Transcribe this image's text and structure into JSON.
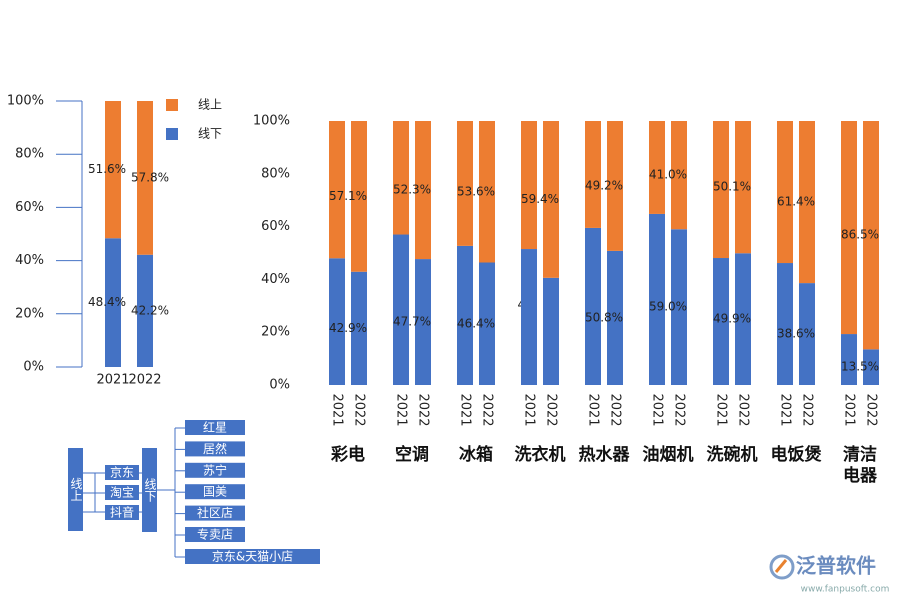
{
  "chart_data": [
    {
      "type": "bar",
      "stacked": true,
      "categories": [
        "2021",
        "2022"
      ],
      "series": [
        {
          "name": "线下",
          "color": "#4472c4",
          "values": [
            48.4,
            42.2
          ],
          "value_labels": [
            "48.4%",
            "42.2%"
          ]
        },
        {
          "name": "线上",
          "color": "#ed7d31",
          "values": [
            51.6,
            57.8
          ],
          "value_labels": [
            "51.6%",
            "57.8%"
          ]
        }
      ],
      "ylim": [
        0,
        100
      ],
      "yticks": [
        {
          "value": 0,
          "label": "0%"
        },
        {
          "value": 20,
          "label": "20%"
        },
        {
          "value": 40,
          "label": "40%"
        },
        {
          "value": 60,
          "label": "60%"
        },
        {
          "value": 80,
          "label": "80%"
        },
        {
          "value": 100,
          "label": "100%"
        }
      ],
      "legend": "top-right"
    },
    {
      "type": "bar",
      "stacked": true,
      "groups": [
        "彩电",
        "空调",
        "冰箱",
        "洗衣机",
        "热水器",
        "油烟机",
        "洗碗机",
        "电饭煲",
        "清洁电器"
      ],
      "categories": [
        "2021",
        "2022",
        "2021",
        "2022",
        "2021",
        "2022",
        "2021",
        "2022",
        "2021",
        "2022",
        "2021",
        "2022",
        "2021",
        "2022",
        "2021",
        "2022",
        "2021",
        "2022"
      ],
      "series": [
        {
          "name": "线下",
          "color": "#4472c4",
          "values": [
            48,
            42.9,
            57,
            47.7,
            52.7,
            46.4,
            51.5,
            40.6,
            59.5,
            50.8,
            64.8,
            59.0,
            48.1,
            49.9,
            46.2,
            38.6,
            19.3,
            13.5
          ],
          "value_labels": [
            null,
            "42.9%",
            null,
            "47.7%",
            null,
            "46.4%",
            null,
            null,
            null,
            "50.8%",
            null,
            "59.0%",
            null,
            "49.9%",
            null,
            "38.6%",
            null,
            "13.5%"
          ]
        },
        {
          "name": "线上",
          "color": "#ed7d31",
          "values": [
            52,
            57.1,
            43,
            52.3,
            47.3,
            53.6,
            48.5,
            59.4,
            40.5,
            49.2,
            35.2,
            41.0,
            51.9,
            50.1,
            53.8,
            61.4,
            80.7,
            86.5
          ],
          "value_labels": [
            null,
            "57.1%",
            null,
            "52.3%",
            null,
            "53.6%",
            null,
            "59.4%",
            null,
            "49.2%",
            null,
            "41.0%",
            null,
            "50.1%",
            null,
            "61.4%",
            null,
            "86.5%"
          ]
        }
      ],
      "annotations": [
        "4%"
      ],
      "ylim": [
        0,
        100
      ],
      "yticks": [
        {
          "value": 0,
          "label": "0%"
        },
        {
          "value": 20,
          "label": "20%"
        },
        {
          "value": 40,
          "label": "40%"
        },
        {
          "value": 60,
          "label": "60%"
        },
        {
          "value": 80,
          "label": "80%"
        },
        {
          "value": 100,
          "label": "100%"
        }
      ]
    }
  ],
  "diagram": {
    "online": {
      "label": "线上",
      "channels": [
        "京东",
        "淘宝",
        "抖音"
      ]
    },
    "offline": {
      "label": "线下",
      "channels": [
        "红星",
        "居然",
        "苏宁",
        "国美",
        "社区店",
        "专卖店",
        "京东&天猫小店"
      ]
    }
  },
  "logo": {
    "name": "泛普软件",
    "url": "www.fanpusoft.com"
  }
}
